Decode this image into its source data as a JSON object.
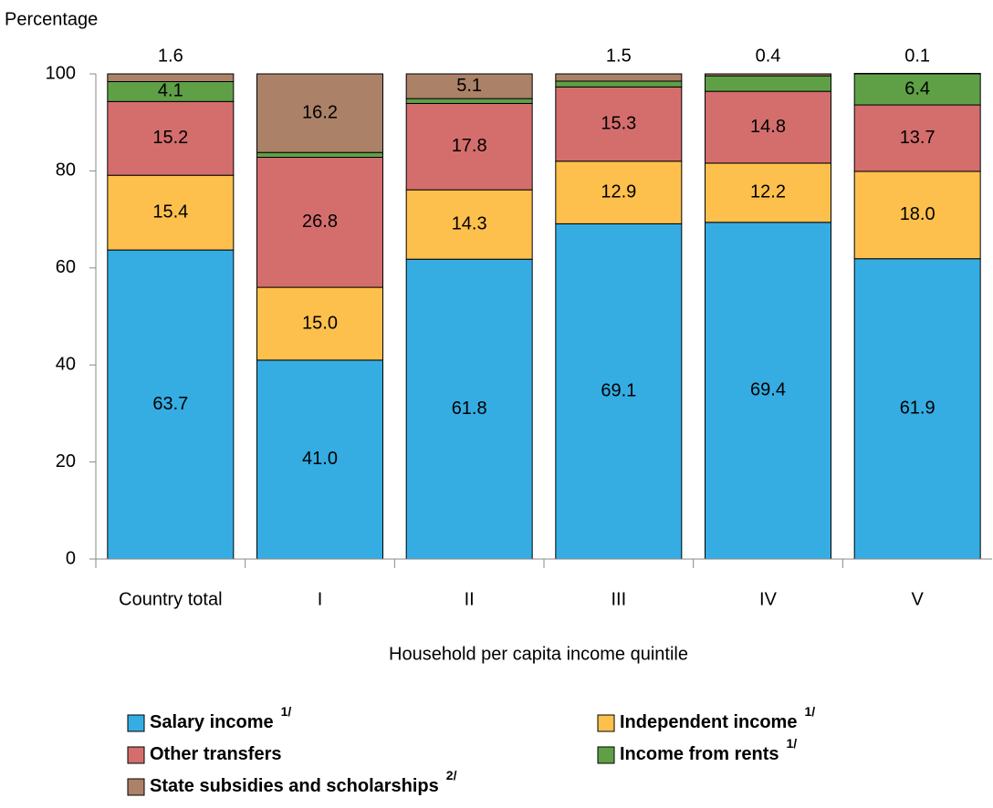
{
  "chart_data": {
    "type": "stacked_bar",
    "ylabel": "Percentage",
    "xlabel": "Household per capita income quintile",
    "categories": [
      "Country total",
      "I",
      "II",
      "III",
      "IV",
      "V"
    ],
    "ylim": [
      0,
      100
    ],
    "yticks": [
      0,
      20,
      40,
      60,
      80,
      100
    ],
    "series": [
      {
        "name": "Salary income",
        "note": "1/",
        "color": "#35ade3",
        "values": [
          63.7,
          41.0,
          61.8,
          69.1,
          69.4,
          61.9
        ],
        "value_labels": [
          "63.7",
          "41.0",
          "61.8",
          "69.1",
          "69.4",
          "61.9"
        ]
      },
      {
        "name": "Independent income",
        "note": "1/",
        "color": "#fdc04d",
        "values": [
          15.4,
          15.0,
          14.3,
          12.9,
          12.2,
          18.0
        ],
        "value_labels": [
          "15.4",
          "15.0",
          "14.3",
          "12.9",
          "12.2",
          "18.0"
        ]
      },
      {
        "name": "Other transfers",
        "color": "#d46e6d",
        "values": [
          15.2,
          26.8,
          17.8,
          15.3,
          14.8,
          13.7
        ],
        "value_labels": [
          "15.2",
          "26.8",
          "17.8",
          "15.3",
          "14.8",
          "13.7"
        ]
      },
      {
        "name": "Income from rents",
        "note": "1/",
        "color": "#5fa047",
        "values": [
          4.1,
          1.0,
          1.0,
          1.2,
          3.2,
          6.4
        ],
        "value_labels": [
          "4.1",
          null,
          null,
          null,
          null,
          "6.4"
        ]
      },
      {
        "name": "State subsidies and scholarships",
        "note": "2/",
        "color": "#ab8168",
        "values": [
          1.6,
          16.2,
          5.1,
          1.5,
          0.4,
          0.1
        ],
        "value_labels": [
          "1.6",
          "16.2",
          "5.1",
          "1.5",
          "0.4",
          "0.1"
        ]
      }
    ]
  }
}
